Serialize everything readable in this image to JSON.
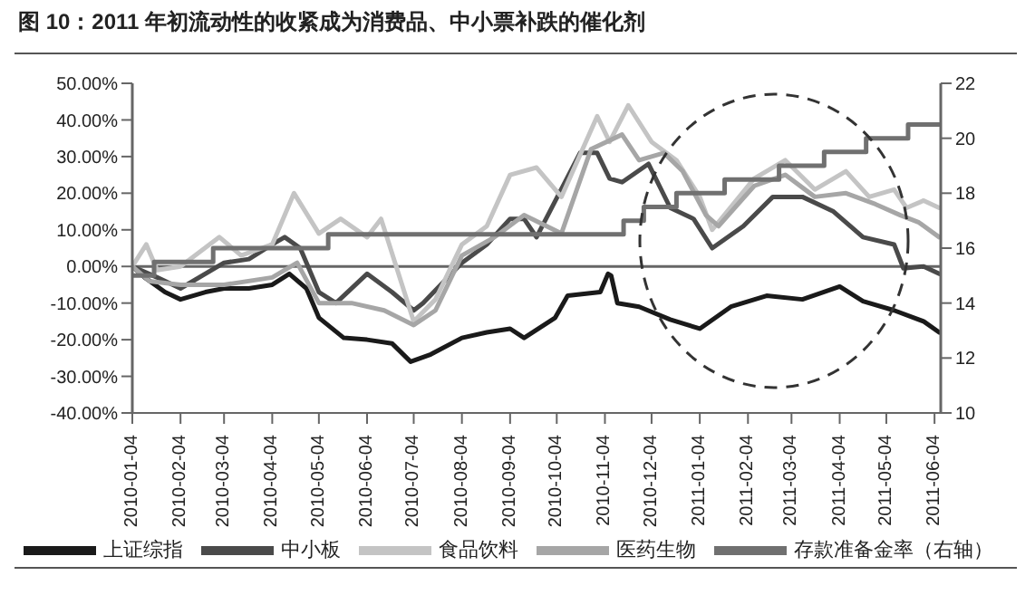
{
  "chart_data": {
    "type": "line",
    "title": "图 10：2011 年初流动性的收紧成为消费品、中小票补跌的催化剂",
    "xlim": [
      "2010-01-04",
      "2011-06-08"
    ],
    "xticks": [
      "2010-01-04",
      "2010-02-04",
      "2010-03-04",
      "2010-04-04",
      "2010-05-04",
      "2010-06-04",
      "2010-07-04",
      "2010-08-04",
      "2010-09-04",
      "2010-10-04",
      "2010-11-04",
      "2010-12-04",
      "2011-01-04",
      "2011-02-04",
      "2011-03-04",
      "2011-04-04",
      "2011-05-04",
      "2011-06-04"
    ],
    "ylim": [
      -40,
      50
    ],
    "yticks": [
      {
        "value": -40,
        "label": "-40.00%"
      },
      {
        "value": -30,
        "label": "-30.00%"
      },
      {
        "value": -20,
        "label": "-20.00%"
      },
      {
        "value": -10,
        "label": "-10.00%"
      },
      {
        "value": 0,
        "label": "0.00%"
      },
      {
        "value": 10,
        "label": "10.00%"
      },
      {
        "value": 20,
        "label": "20.00%"
      },
      {
        "value": 30,
        "label": "30.00%"
      },
      {
        "value": 40,
        "label": "40.00%"
      },
      {
        "value": 50,
        "label": "50.00%"
      }
    ],
    "y2lim": [
      10,
      22
    ],
    "y2ticks": [
      10,
      12,
      14,
      16,
      18,
      20,
      22
    ],
    "legend": "bottom",
    "marker": "none",
    "line_style": "solid",
    "ref_lines": [
      {
        "axis": "y",
        "value": 0,
        "color": "#666666"
      }
    ],
    "series": [
      {
        "name": "上证综指",
        "color": "#1a1a1a",
        "x": [
          "2010-01-04",
          "2010-01-12",
          "2010-01-25",
          "2010-02-04",
          "2010-02-20",
          "2010-03-04",
          "2010-03-20",
          "2010-04-04",
          "2010-04-15",
          "2010-04-26",
          "2010-05-04",
          "2010-05-20",
          "2010-06-04",
          "2010-06-20",
          "2010-07-02",
          "2010-07-15",
          "2010-08-04",
          "2010-08-20",
          "2010-09-04",
          "2010-09-13",
          "2010-10-03",
          "2010-10-11",
          "2010-11-01",
          "2010-11-06",
          "2010-11-08",
          "2010-11-12",
          "2010-11-26",
          "2010-12-16",
          "2011-01-04",
          "2011-01-24",
          "2011-02-16",
          "2011-03-11",
          "2011-04-04",
          "2011-04-19",
          "2011-05-09",
          "2011-05-28",
          "2011-06-07"
        ],
        "values": [
          0,
          -3,
          -7,
          -9,
          -7,
          -6,
          -6,
          -5,
          -2,
          -6,
          -14,
          -19.5,
          -20,
          -21,
          -26,
          -24,
          -19.5,
          -18,
          -17,
          -19.5,
          -14,
          -8,
          -7,
          -2,
          -2.5,
          -10,
          -11,
          -14.5,
          -17,
          -11,
          -8,
          -9,
          -5.5,
          -9.5,
          -12,
          -15,
          -18
        ]
      },
      {
        "name": "中小板",
        "color": "#4a4a4a",
        "x": [
          "2010-01-04",
          "2010-01-20",
          "2010-02-04",
          "2010-03-04",
          "2010-03-20",
          "2010-04-04",
          "2010-04-12",
          "2010-04-22",
          "2010-05-04",
          "2010-05-15",
          "2010-06-04",
          "2010-06-20",
          "2010-07-04",
          "2010-07-10",
          "2010-08-04",
          "2010-08-20",
          "2010-09-04",
          "2010-09-13",
          "2010-09-21",
          "2010-10-19",
          "2010-10-30",
          "2010-11-07",
          "2010-11-15",
          "2010-12-02",
          "2010-12-16",
          "2010-12-31",
          "2011-01-12",
          "2011-02-01",
          "2011-02-20",
          "2011-03-11",
          "2011-03-31",
          "2011-04-19",
          "2011-05-09",
          "2011-05-15",
          "2011-05-28",
          "2011-06-07"
        ],
        "values": [
          0,
          -3,
          -6,
          1,
          2,
          6,
          8,
          5,
          -7,
          -10,
          -2,
          -7,
          -12,
          -10,
          1,
          6,
          13,
          13,
          8,
          31,
          31,
          24,
          23,
          28,
          16,
          13,
          5,
          11,
          19,
          19,
          15,
          8,
          6,
          -0.5,
          0,
          -2
        ]
      },
      {
        "name": "食品饮料",
        "color": "#c4c4c4",
        "x": [
          "2010-01-04",
          "2010-01-13",
          "2010-01-20",
          "2010-02-04",
          "2010-03-01",
          "2010-03-15",
          "2010-04-04",
          "2010-04-18",
          "2010-05-04",
          "2010-05-18",
          "2010-06-04",
          "2010-06-13",
          "2010-07-04",
          "2010-07-18",
          "2010-08-04",
          "2010-08-20",
          "2010-09-04",
          "2010-09-21",
          "2010-10-07",
          "2010-10-30",
          "2010-11-07",
          "2010-11-19",
          "2010-12-04",
          "2010-12-20",
          "2011-01-04",
          "2011-01-12",
          "2011-02-08",
          "2011-02-28",
          "2011-03-19",
          "2011-04-08",
          "2011-04-23",
          "2011-05-09",
          "2011-05-17",
          "2011-05-28",
          "2011-06-07"
        ],
        "values": [
          0,
          6,
          -1,
          0,
          8,
          3,
          6,
          20,
          9,
          13,
          8,
          13,
          -15,
          -9,
          6,
          11,
          25,
          27,
          19,
          41,
          34,
          44,
          34,
          29,
          19,
          10,
          24,
          29,
          21,
          26,
          19,
          21,
          16,
          18,
          16
        ]
      },
      {
        "name": "医药生物",
        "color": "#a6a6a6",
        "x": [
          "2010-01-04",
          "2010-01-15",
          "2010-02-04",
          "2010-03-04",
          "2010-04-04",
          "2010-04-20",
          "2010-05-04",
          "2010-05-25",
          "2010-06-15",
          "2010-07-04",
          "2010-07-18",
          "2010-08-04",
          "2010-08-25",
          "2010-09-13",
          "2010-10-07",
          "2010-10-26",
          "2010-11-15",
          "2010-11-26",
          "2010-12-12",
          "2010-12-24",
          "2011-01-08",
          "2011-01-16",
          "2011-02-08",
          "2011-02-28",
          "2011-03-19",
          "2011-04-08",
          "2011-04-27",
          "2011-05-13",
          "2011-05-25",
          "2011-06-07"
        ],
        "values": [
          0,
          -4,
          -5,
          -5,
          -3,
          1,
          -10,
          -10,
          -12,
          -16,
          -12,
          3,
          8,
          14,
          9,
          32,
          36,
          29,
          31,
          26,
          14,
          11,
          22,
          25,
          19,
          20,
          17,
          14,
          12,
          8
        ]
      },
      {
        "name": "存款准备金率（右轴）",
        "type": "step",
        "axis": "y2",
        "color": "#707070",
        "x": [
          "2010-01-04",
          "2010-01-18",
          "2010-02-25",
          "2010-05-10",
          "2010-11-16",
          "2010-11-29",
          "2010-12-20",
          "2011-01-20",
          "2011-02-24",
          "2011-03-25",
          "2011-04-21",
          "2011-05-18",
          "2011-06-07"
        ],
        "values": [
          15,
          15.5,
          16,
          16.5,
          17,
          17.5,
          18,
          18.5,
          19,
          19.5,
          20,
          20.5,
          20.5
        ]
      }
    ]
  }
}
